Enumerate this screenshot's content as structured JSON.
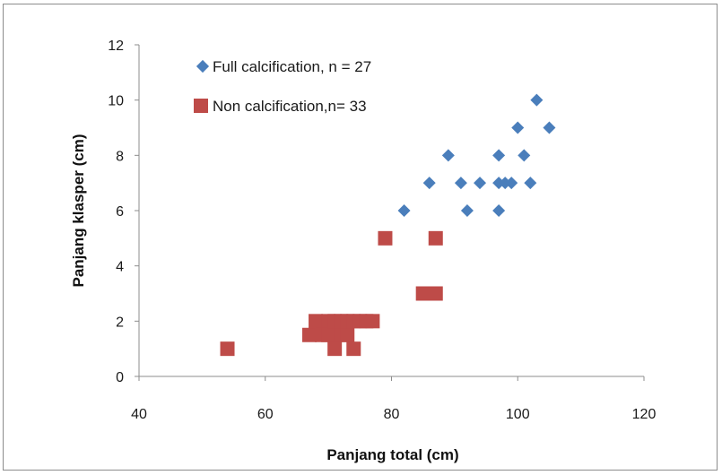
{
  "chart_data": {
    "type": "scatter",
    "title": "",
    "xlabel": "Panjang total (cm)",
    "ylabel": "Panjang klasper (cm)",
    "xlim": [
      40,
      120
    ],
    "ylim": [
      0,
      12
    ],
    "xticks": [
      40,
      60,
      80,
      100,
      120
    ],
    "yticks": [
      0,
      2,
      4,
      6,
      8,
      10,
      12
    ],
    "grid": false,
    "legend_position": "top-left",
    "series": [
      {
        "name": "Full calcification, n = 27",
        "marker": "diamond",
        "color": "#4a7ebb",
        "points": [
          [
            82,
            6
          ],
          [
            86,
            7
          ],
          [
            89,
            8
          ],
          [
            91,
            7
          ],
          [
            92,
            6
          ],
          [
            94,
            7
          ],
          [
            97,
            8
          ],
          [
            97,
            7
          ],
          [
            97,
            6
          ],
          [
            98,
            7
          ],
          [
            99,
            7
          ],
          [
            100,
            9
          ],
          [
            101,
            8
          ],
          [
            102,
            7
          ],
          [
            103,
            10
          ],
          [
            105,
            9
          ]
        ]
      },
      {
        "name": "Non calcification,n= 33",
        "marker": "square",
        "color": "#be4b48",
        "points": [
          [
            54,
            1
          ],
          [
            67,
            1.5
          ],
          [
            68,
            2
          ],
          [
            69,
            1.5
          ],
          [
            70,
            2
          ],
          [
            70,
            1.5
          ],
          [
            71,
            1
          ],
          [
            71,
            2
          ],
          [
            72,
            1.5
          ],
          [
            72,
            2
          ],
          [
            73,
            1.5
          ],
          [
            73,
            2
          ],
          [
            74,
            1
          ],
          [
            74,
            2
          ],
          [
            75,
            2
          ],
          [
            76,
            2
          ],
          [
            77,
            2
          ],
          [
            79,
            5
          ],
          [
            85,
            3
          ],
          [
            86,
            3
          ],
          [
            87,
            3
          ],
          [
            87,
            5
          ]
        ]
      }
    ]
  }
}
